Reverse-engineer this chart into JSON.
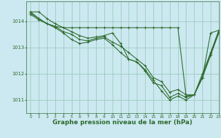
{
  "bg_color": "#cce8f0",
  "grid_color": "#99ccbb",
  "line_color": "#2d6a2d",
  "xlabel": "Graphe pression niveau de la mer (hPa)",
  "xlabel_fontsize": 6.5,
  "xlim": [
    -0.5,
    23
  ],
  "ylim": [
    1010.5,
    1014.75
  ],
  "yticks": [
    1011,
    1012,
    1013,
    1014
  ],
  "xticks": [
    0,
    1,
    2,
    3,
    4,
    5,
    6,
    7,
    8,
    9,
    10,
    11,
    12,
    13,
    14,
    15,
    16,
    17,
    18,
    19,
    20,
    21,
    22,
    23
  ],
  "series": [
    [
      1014.35,
      1014.35,
      1014.1,
      1013.9,
      1013.75,
      1013.6,
      1013.45,
      1013.35,
      1013.4,
      1013.45,
      1013.55,
      1013.15,
      1012.55,
      1012.45,
      1012.1,
      1011.65,
      1011.55,
      1011.1,
      1011.25,
      1011.1,
      1011.2,
      1012.0,
      1012.8,
      1013.65
    ],
    [
      1014.3,
      1014.1,
      1013.9,
      1013.8,
      1013.6,
      1013.5,
      1013.3,
      1013.25,
      1013.35,
      1013.4,
      1013.2,
      1013.05,
      1012.8,
      1012.55,
      1012.3,
      1011.85,
      1011.7,
      1011.3,
      1011.4,
      1011.2,
      1011.2,
      1011.9,
      1012.75,
      1013.6
    ],
    [
      1014.25,
      1014.05,
      1013.9,
      1013.75,
      1013.55,
      1013.3,
      1013.15,
      1013.2,
      1013.3,
      1013.35,
      1013.1,
      1012.8,
      1012.55,
      1012.45,
      1012.15,
      1011.75,
      1011.35,
      1011.0,
      1011.15,
      1011.0,
      1011.2,
      1011.85,
      1012.7,
      1013.55
    ],
    [
      1014.35,
      1014.1,
      1013.9,
      1013.8,
      1013.75,
      1013.75,
      1013.75,
      1013.75,
      1013.75,
      1013.75,
      1013.75,
      1013.75,
      1013.75,
      1013.75,
      1013.75,
      1013.75,
      1013.75,
      1013.75,
      1013.75,
      1011.15,
      1011.2,
      1011.85,
      1013.55,
      1013.65
    ]
  ]
}
